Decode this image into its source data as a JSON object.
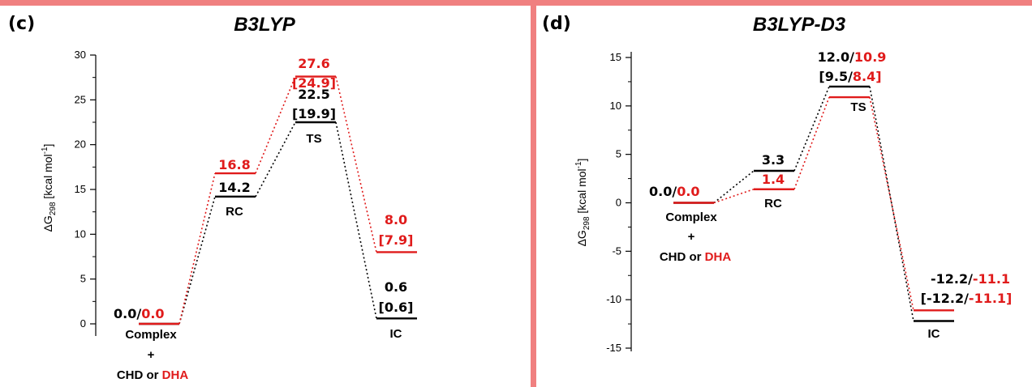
{
  "colors": {
    "black_path": "#000000",
    "red_path": "#e01b1b",
    "frame": "#f08080"
  },
  "chart_data": [
    {
      "type": "energy-profile",
      "panel": "(c)",
      "title": "B3LYP",
      "ylabel": "ΔG298 [kcal mol-1]",
      "ylim": [
        0,
        30
      ],
      "yticks": [
        "0",
        "5",
        "10",
        "15",
        "20",
        "25",
        "30"
      ],
      "states": [
        {
          "label": "Complex",
          "sublabel": "+",
          "sublabel2": "CHD or",
          "sublabel2_red": "DHA",
          "black": 0.0,
          "red": 0.0,
          "text_black": "0.0/",
          "text_red": "0.0"
        },
        {
          "label": "RC",
          "black": 14.2,
          "red": 16.8,
          "text_black": "14.2",
          "text_red": "16.8"
        },
        {
          "label": "TS",
          "black": 22.5,
          "red": 27.6,
          "text_black": "22.5",
          "text_black2": "[19.9]",
          "text_red": "27.6",
          "text_red2": "[24.9]"
        },
        {
          "label": "IC",
          "black": 0.6,
          "red": 8.0,
          "text_black": "0.6",
          "text_black2": "[0.6]",
          "text_red": "8.0",
          "text_red2": "[7.9]"
        }
      ]
    },
    {
      "type": "energy-profile",
      "panel": "(d)",
      "title": "B3LYP-D3",
      "ylabel": "ΔG298 [kcal mol-1]",
      "ylim": [
        -15,
        15
      ],
      "yticks": [
        "-15",
        "-10",
        "-5",
        "0",
        "5",
        "10",
        "15"
      ],
      "states": [
        {
          "label": "Complex",
          "sublabel": "+",
          "sublabel2": "CHD or",
          "sublabel2_red": "DHA",
          "black": 0.0,
          "red": 0.0,
          "text_black": "0.0/",
          "text_red": "0.0"
        },
        {
          "label": "RC",
          "black": 3.3,
          "red": 1.4,
          "text_black": "3.3",
          "text_red": "1.4"
        },
        {
          "label": "TS",
          "black": 12.0,
          "red": 10.9,
          "text_black": "12.0/",
          "text_red": "10.9",
          "text_black2": "[9.5/",
          "text_red2": "8.4]"
        },
        {
          "label": "IC",
          "black": -12.2,
          "red": -11.1,
          "text_black": "-12.2/",
          "text_red": "-11.1",
          "text_black2": "[-12.2/",
          "text_red2": "-11.1]"
        }
      ]
    }
  ]
}
